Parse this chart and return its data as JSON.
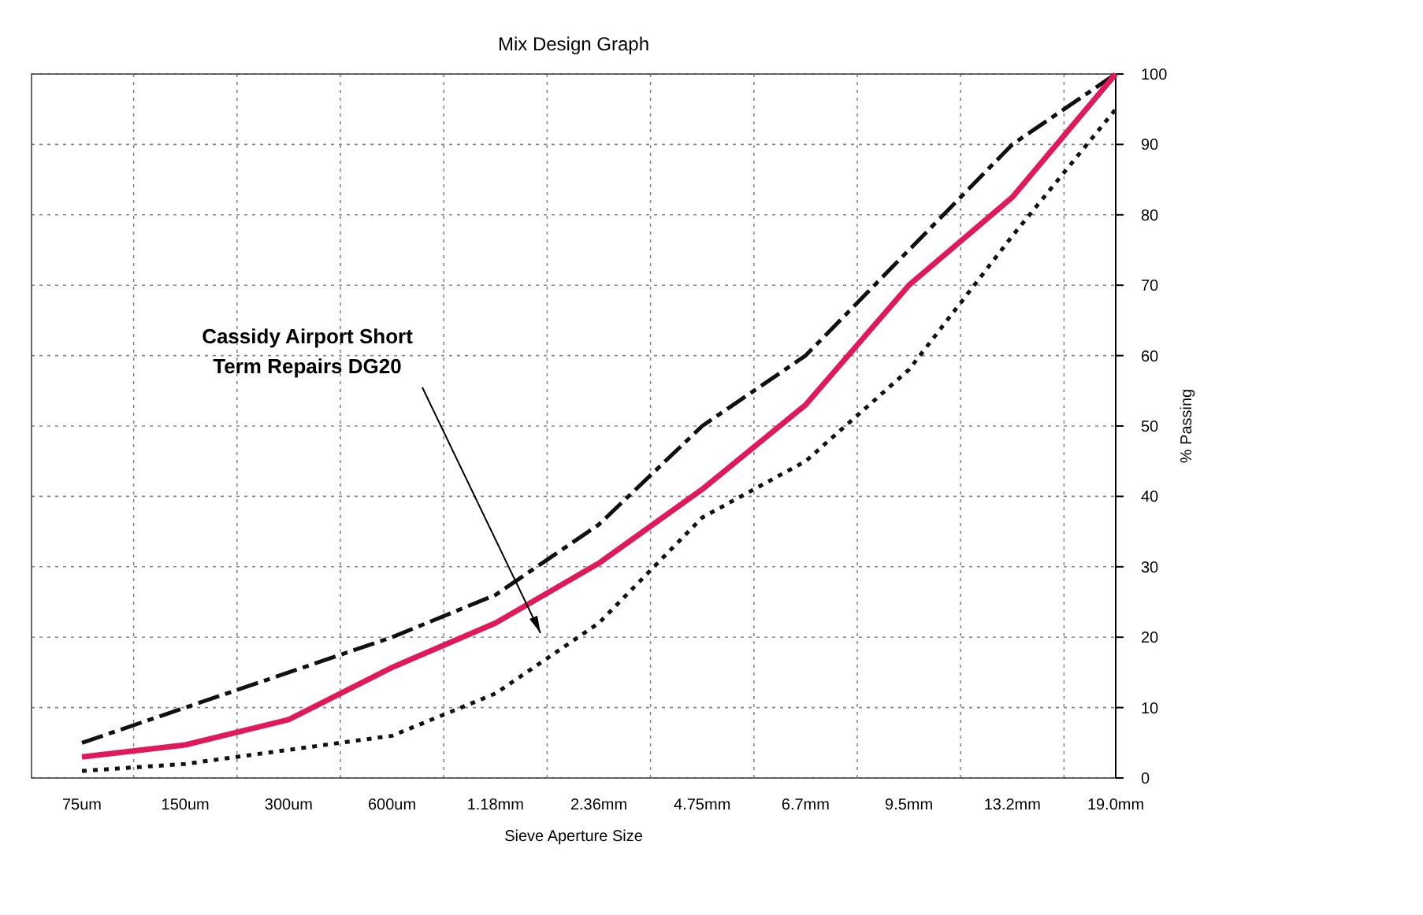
{
  "chart_data": {
    "type": "line",
    "title": "Mix  Design Graph",
    "xlabel": "Sieve Aperture Size",
    "ylabel": "% Passing",
    "categories": [
      "75um",
      "150um",
      "300um",
      "600um",
      "1.18mm",
      "2.36mm",
      "4.75mm",
      "6.7mm",
      "9.5mm",
      "13.2mm",
      "19.0mm"
    ],
    "series": [
      {
        "color": "#111111",
        "line_style": "dashed",
        "values": [
          5,
          10,
          15,
          20,
          26,
          36,
          50,
          60,
          75,
          90,
          100
        ]
      },
      {
        "color": "#111111",
        "line_style": "dotted",
        "values": [
          1,
          2,
          4,
          6,
          12,
          22,
          37,
          45,
          58,
          77,
          95
        ]
      },
      {
        "color": "#e0195a",
        "line_style": "solid",
        "values": [
          3,
          4.7,
          8.3,
          15.7,
          22,
          30.5,
          41,
          53,
          70,
          82.5,
          100
        ]
      }
    ],
    "ylim": [
      0,
      100
    ],
    "yticks": [
      0,
      10,
      20,
      30,
      40,
      50,
      60,
      70,
      80,
      90,
      100
    ],
    "grid": true,
    "marker": "none",
    "annotations": [
      "Cassidy Airport Short Term Repairs DG20"
    ]
  }
}
